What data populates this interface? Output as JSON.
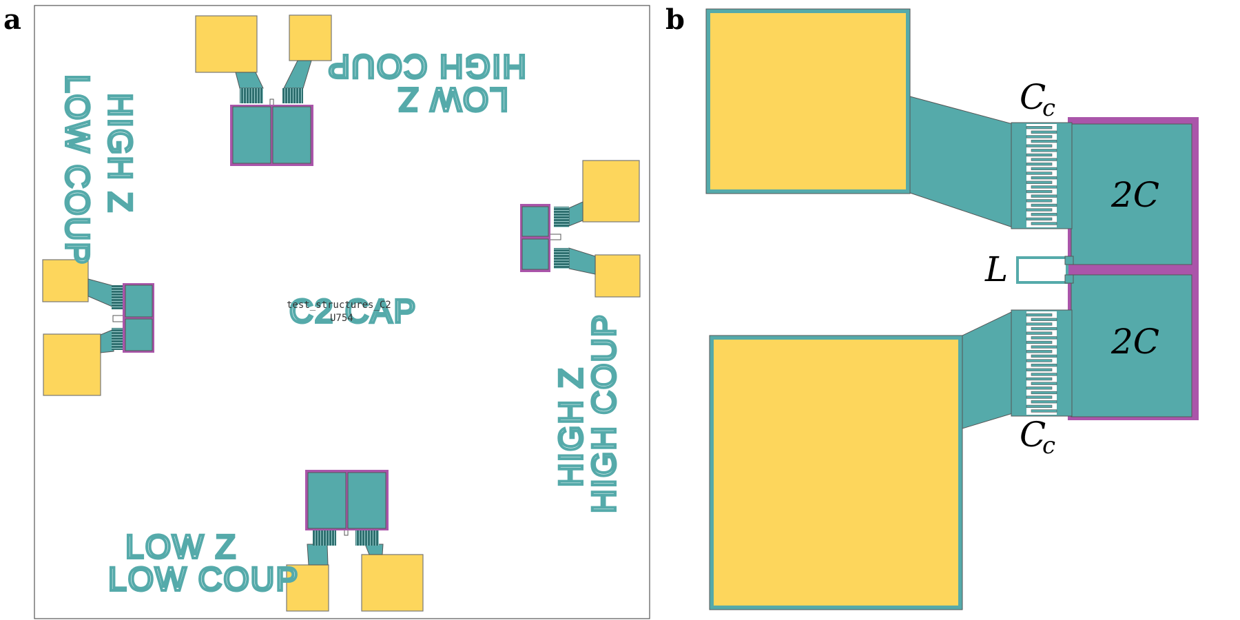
{
  "panels": {
    "a": {
      "label": "a",
      "labels": {
        "top_left": [
          "LOW COUP",
          "HIGH Z"
        ],
        "top_right": [
          "LOW Z",
          "HIGH COUP"
        ],
        "bottom_left": [
          "LOW Z",
          "LOW COUP"
        ],
        "bottom_right": [
          "HIGH Z",
          "HIGH COUP"
        ],
        "center_title": "C2 CAP",
        "cell_name": "test_structures_C2",
        "cell_id": "U754"
      }
    },
    "b": {
      "label": "b",
      "annotations": {
        "cc_top_main": "C",
        "cc_top_sub": "c",
        "cc_bottom_main": "C",
        "cc_bottom_sub": "c",
        "cap_top": "2C",
        "cap_bottom": "2C",
        "inductor": "L"
      }
    }
  },
  "colors": {
    "pad": "#fdd65c",
    "metal": "#55aaaa",
    "ground": "#aa55aa",
    "outline": "#555555"
  }
}
